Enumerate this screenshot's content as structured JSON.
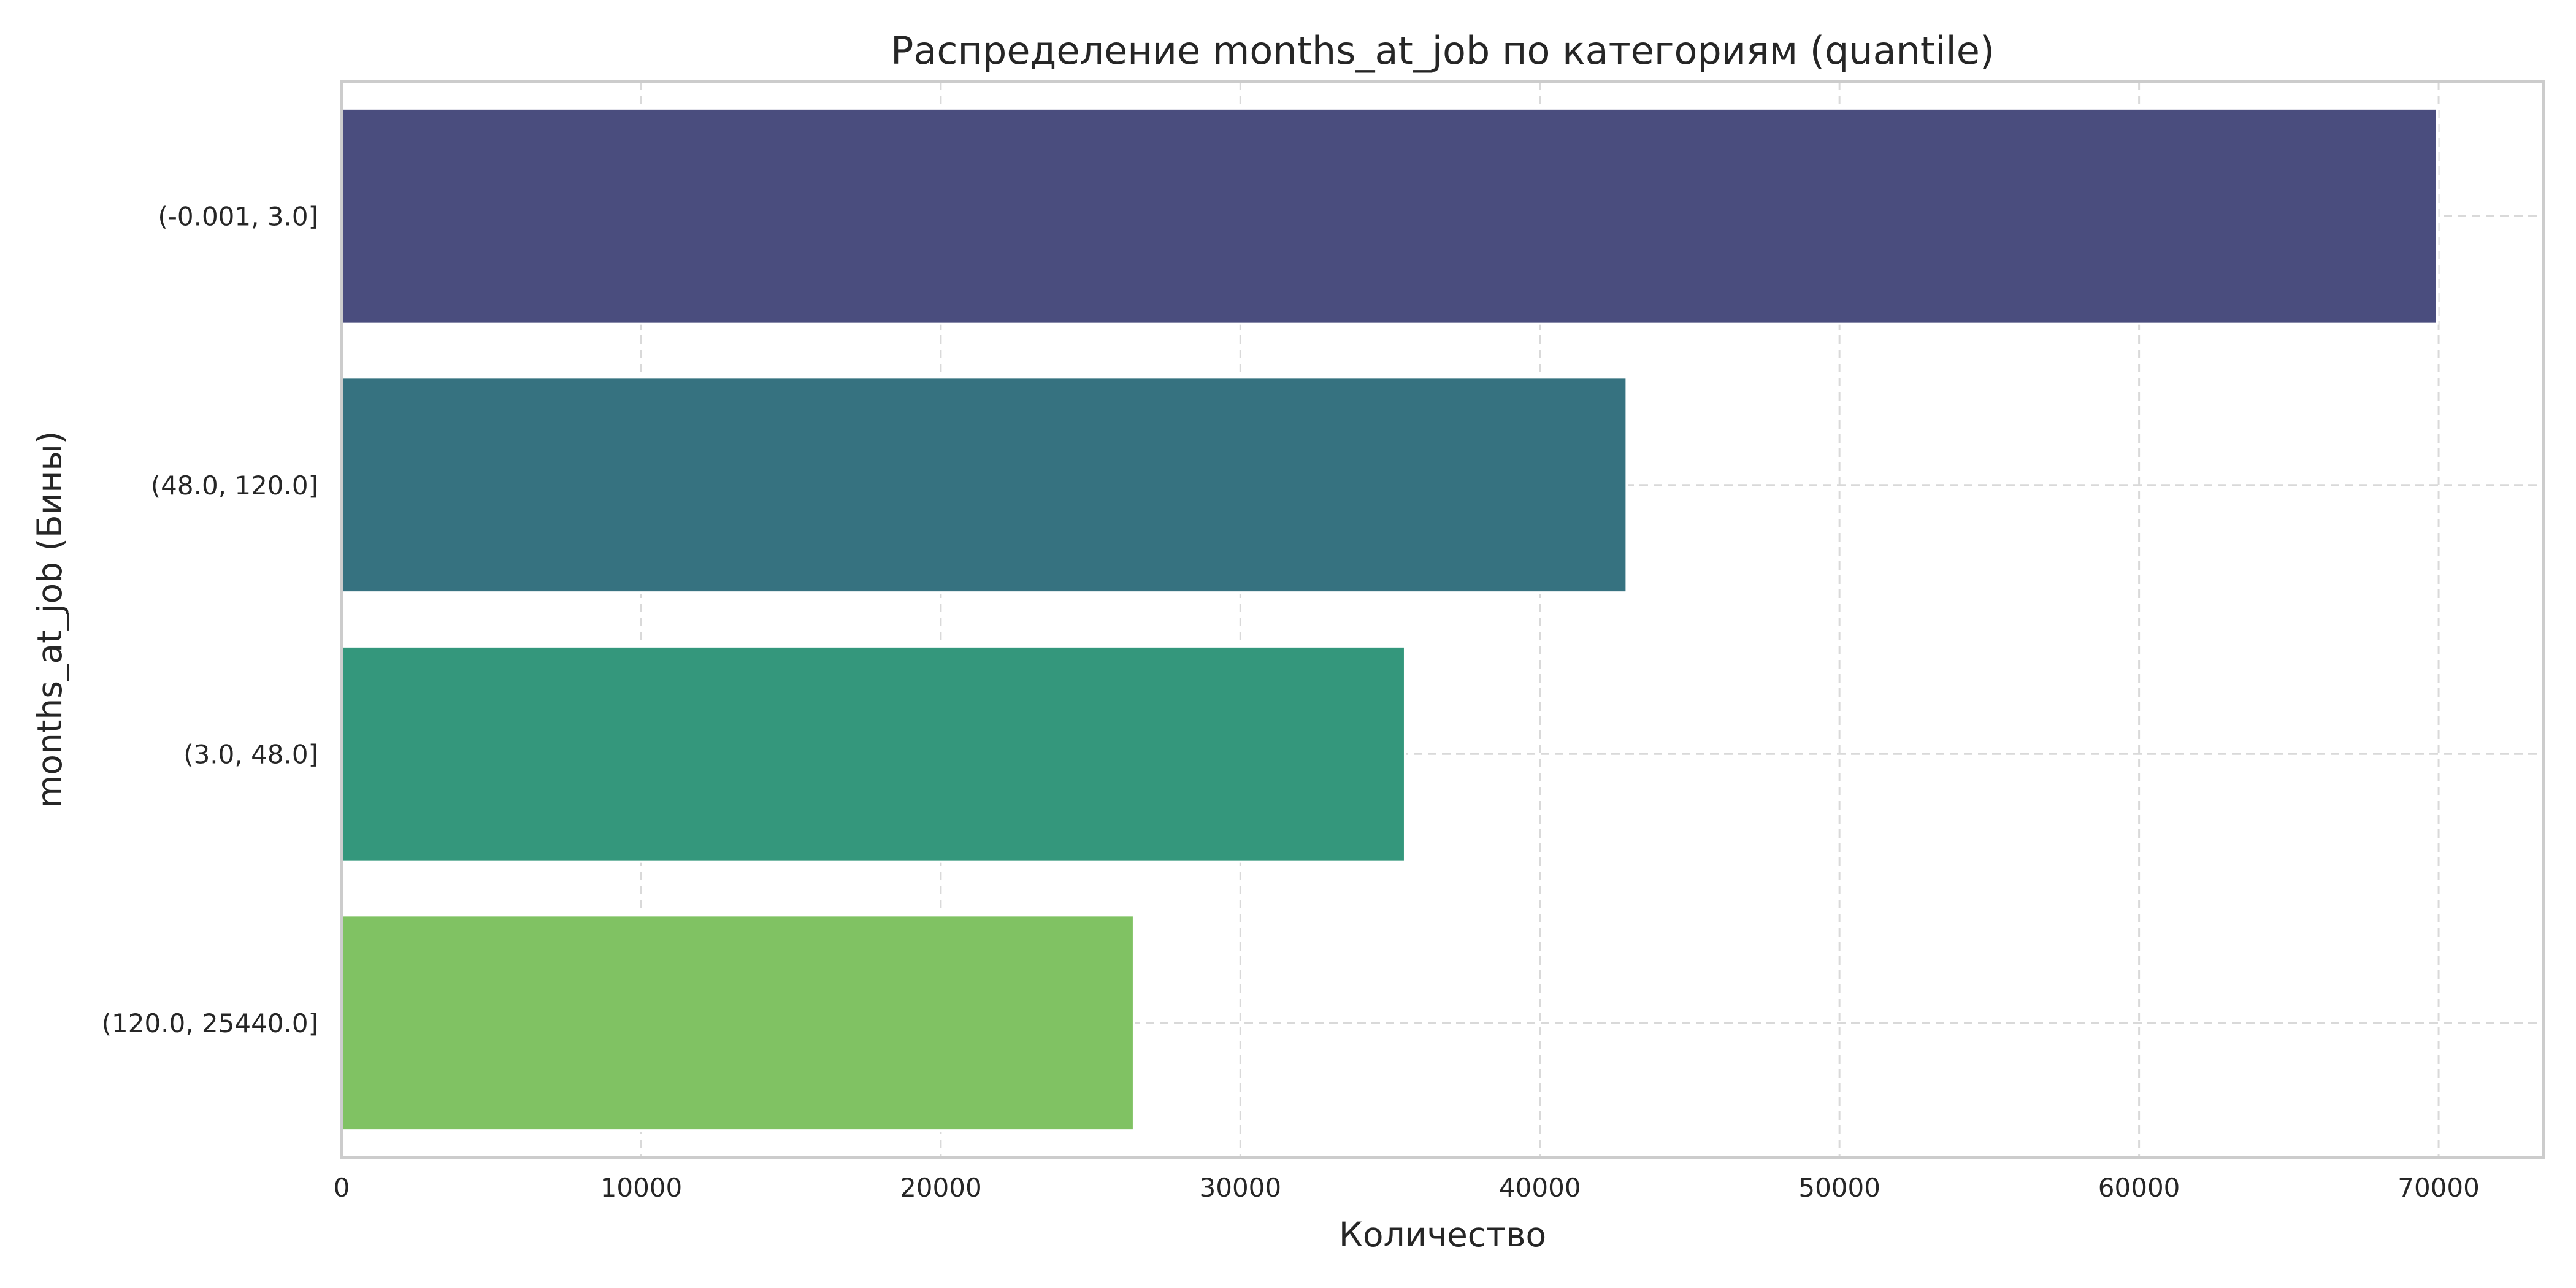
{
  "chart_data": {
    "type": "bar",
    "orientation": "horizontal",
    "title": "Распределение months_at_job по категориям (quantile)",
    "xlabel": "Количество",
    "ylabel": "months_at_job (Бины)",
    "categories": [
      "(-0.001, 3.0]",
      "(48.0, 120.0]",
      "(3.0, 48.0]",
      "(120.0, 25440.0]"
    ],
    "values": [
      69950,
      42900,
      35500,
      26450
    ],
    "colors": [
      "#4a4d7e",
      "#367280",
      "#34977c",
      "#80c263"
    ],
    "xlim": [
      0,
      73500
    ],
    "xticks": [
      0,
      10000,
      20000,
      30000,
      40000,
      50000,
      60000,
      70000
    ],
    "grid": true,
    "legend": "none"
  }
}
